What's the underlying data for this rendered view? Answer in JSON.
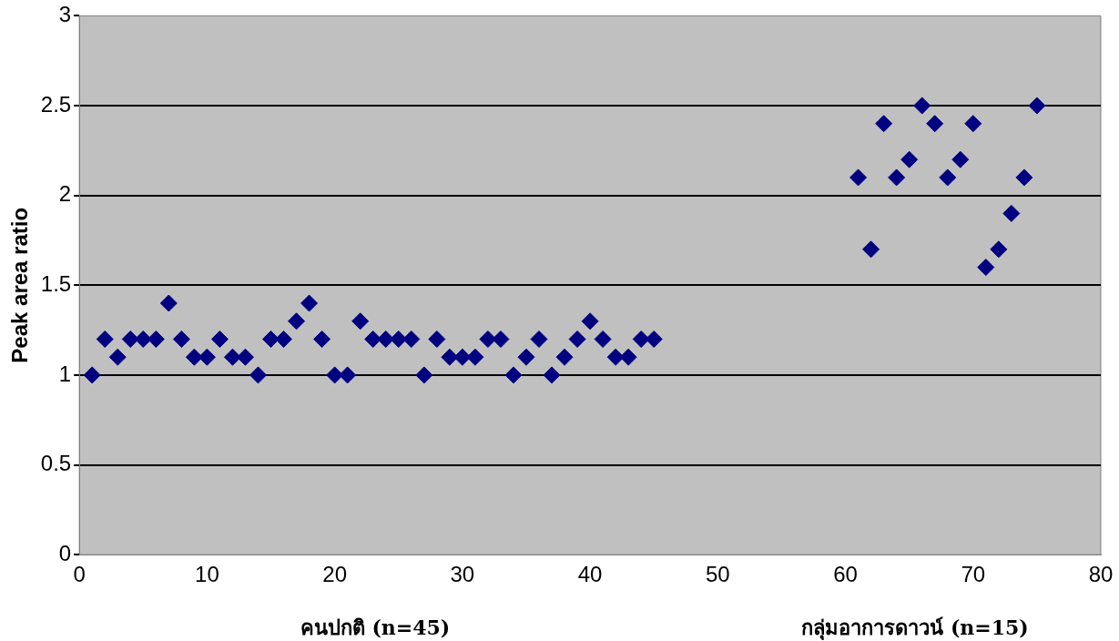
{
  "chart_data": {
    "type": "scatter",
    "ylabel": "Peak area ratio",
    "x": [
      1,
      2,
      3,
      4,
      5,
      6,
      7,
      8,
      9,
      10,
      11,
      12,
      13,
      14,
      15,
      16,
      17,
      18,
      19,
      20,
      21,
      22,
      23,
      24,
      25,
      26,
      27,
      28,
      29,
      30,
      31,
      32,
      33,
      34,
      35,
      36,
      37,
      38,
      39,
      40,
      41,
      42,
      43,
      44,
      45,
      61,
      62,
      63,
      64,
      65,
      66,
      67,
      68,
      69,
      70,
      71,
      72,
      73,
      74,
      75
    ],
    "series": [
      {
        "color": "#000080",
        "values": [
          1.0,
          1.2,
          1.1,
          1.2,
          1.2,
          1.2,
          1.4,
          1.2,
          1.1,
          1.1,
          1.2,
          1.1,
          1.1,
          1.0,
          1.2,
          1.2,
          1.3,
          1.4,
          1.2,
          1.0,
          1.0,
          1.3,
          1.2,
          1.2,
          1.2,
          1.2,
          1.0,
          1.2,
          1.1,
          1.1,
          1.1,
          1.2,
          1.2,
          1.0,
          1.1,
          1.2,
          1.0,
          1.1,
          1.2,
          1.3,
          1.2,
          1.1,
          1.1,
          1.2,
          1.2,
          2.1,
          1.7,
          2.4,
          2.1,
          2.2,
          2.5,
          2.4,
          2.1,
          2.2,
          2.4,
          1.6,
          1.7,
          1.9,
          2.1,
          2.5
        ]
      }
    ],
    "xlim": [
      0,
      80
    ],
    "xticks": [
      0,
      10,
      20,
      30,
      40,
      50,
      60,
      70,
      80
    ],
    "ylim": [
      0,
      3
    ],
    "yticks": [
      0,
      0.5,
      1,
      1.5,
      2,
      2.5,
      3
    ],
    "grid": "y",
    "legend": false,
    "marker": "diamond",
    "annotations": [
      "คนปกติ (n=45)",
      "กลุ่มอาการดาวน์ (n=15)"
    ]
  }
}
